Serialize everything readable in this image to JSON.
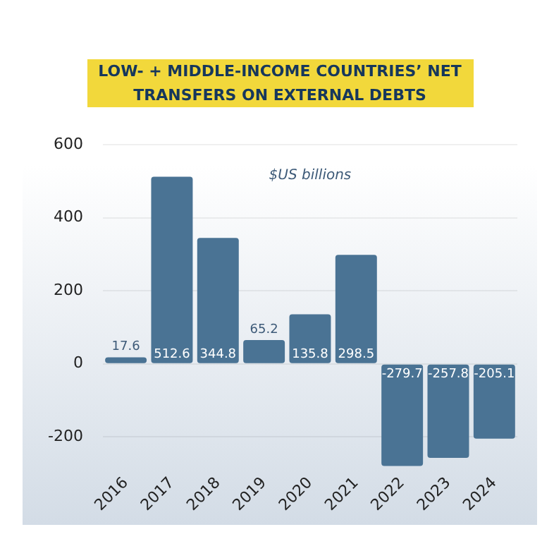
{
  "chart_data": {
    "type": "bar",
    "title": "LOW- +  MIDDLE-INCOME COUNTRIES’ NET TRANSFERS ON EXTERNAL DEBTS",
    "subtitle": "$US billions",
    "categories": [
      "2016",
      "2017",
      "2018",
      "2019",
      "2020",
      "2021",
      "2022",
      "2023",
      "2024"
    ],
    "values": [
      17.6,
      512.6,
      344.8,
      65.2,
      135.8,
      298.5,
      -279.7,
      -257.8,
      -205.1
    ],
    "color": "#4a7394",
    "ylim": [
      -290,
      600
    ],
    "yticks": [
      -200,
      0,
      200,
      400,
      600
    ],
    "grid": "y",
    "data_labels": true
  }
}
